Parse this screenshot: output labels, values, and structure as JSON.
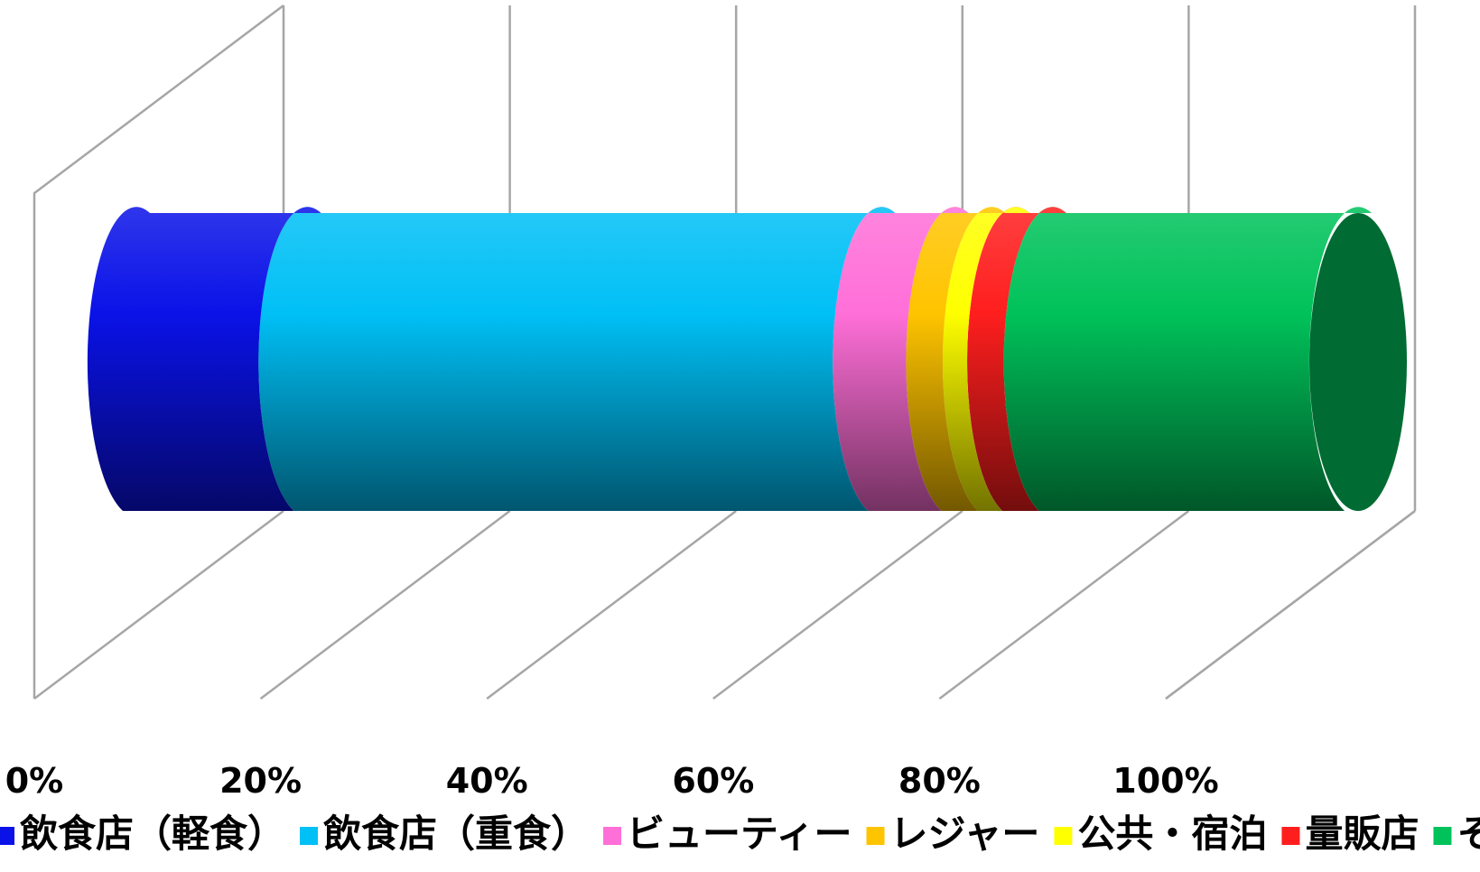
{
  "chart_data": {
    "type": "bar",
    "orientation": "horizontal",
    "stacked": "100%",
    "style": "3d-cylinder",
    "categories": [
      ""
    ],
    "series": [
      {
        "name": "飲食店（軽食）",
        "values": [
          14
        ],
        "color": "#0a12e8"
      },
      {
        "name": "飲食店（重食）",
        "values": [
          47
        ],
        "color": "#00c0f6"
      },
      {
        "name": "ビューティー",
        "values": [
          6
        ],
        "color": "#ff6fd8"
      },
      {
        "name": "レジャー",
        "values": [
          3
        ],
        "color": "#ffc400"
      },
      {
        "name": "公共・宿泊",
        "values": [
          2
        ],
        "color": "#ffff00"
      },
      {
        "name": "量販店",
        "values": [
          3
        ],
        "color": "#ff1e1e"
      },
      {
        "name": "そ",
        "values": [
          25
        ],
        "color": "#00c25a"
      }
    ],
    "x_ticks": [
      "0%",
      "20%",
      "40%",
      "60%",
      "80%",
      "100%"
    ],
    "xlim": [
      0,
      100
    ],
    "title": "",
    "xlabel": "",
    "ylabel": "",
    "grid": true,
    "legend_position": "bottom"
  }
}
